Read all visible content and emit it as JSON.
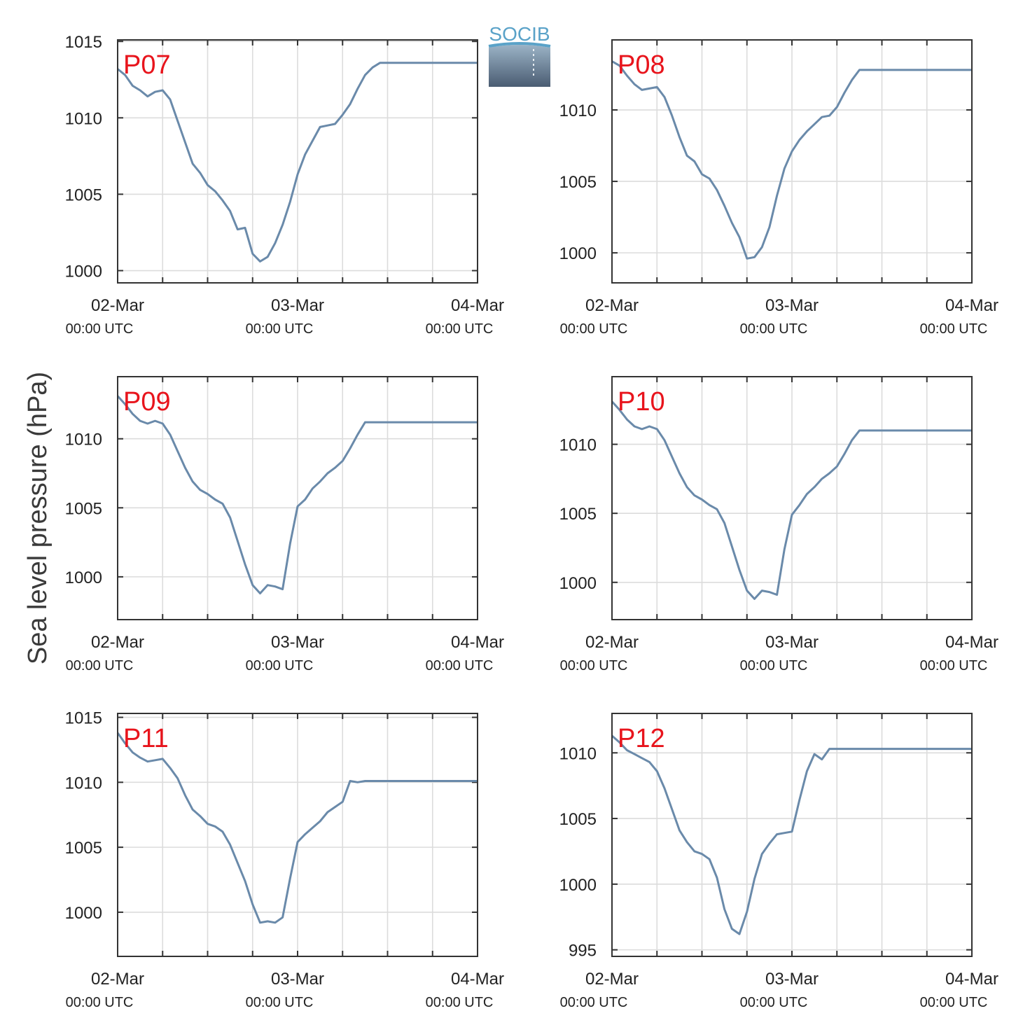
{
  "figure": {
    "ylabel": "Sea level pressure (hPa)",
    "logo_text": "SOCIB",
    "colors": {
      "line": "#6a8aaa",
      "panel_label": "#e8141c",
      "grid": "#dcdcdc",
      "frame": "#333333"
    }
  },
  "chart_data": [
    {
      "type": "line",
      "panel": "P07",
      "ylim": [
        999.2,
        1015.1
      ],
      "yticks": [
        1000,
        1005,
        1010,
        1015
      ],
      "xlim": [
        0,
        48
      ],
      "xticks": [
        {
          "t": 0,
          "date": "02-Mar",
          "time": "00:00 UTC"
        },
        {
          "t": 24,
          "date": "03-Mar",
          "time": "00:00 UTC"
        },
        {
          "t": 48,
          "date": "04-Mar",
          "time": "00:00 UTC"
        }
      ],
      "x_hours": [
        0,
        1,
        2,
        3,
        4,
        5,
        6,
        7,
        8,
        9,
        10,
        11,
        12,
        13,
        14,
        15,
        16,
        17,
        18,
        19,
        20,
        21,
        22,
        23,
        24,
        25,
        26,
        27,
        28,
        29,
        30,
        31,
        32,
        33,
        34,
        35,
        36,
        37,
        38,
        39,
        40,
        41,
        42,
        43,
        44,
        45,
        46,
        47,
        48
      ],
      "values": [
        1013.2,
        1012.8,
        1012.1,
        1011.8,
        1011.4,
        1011.7,
        1011.8,
        1011.2,
        1009.8,
        1008.4,
        1007.0,
        1006.4,
        1005.6,
        1005.2,
        1004.6,
        1003.9,
        1002.7,
        1002.8,
        1001.1,
        1000.6,
        1000.9,
        1001.8,
        1003.0,
        1004.5,
        1006.3,
        1007.6,
        1008.5,
        1009.4,
        1009.5,
        1009.6,
        1010.2,
        1010.9,
        1011.9,
        1012.8,
        1013.3,
        1013.6,
        1013.6,
        1013.6,
        1013.6,
        1013.6,
        1013.6,
        1013.6,
        1013.6,
        1013.6,
        1013.6,
        1013.6,
        1013.6,
        1013.6,
        1013.6
      ]
    },
    {
      "type": "line",
      "panel": "P08",
      "ylim": [
        997.9,
        1014.9
      ],
      "yticks": [
        1000,
        1005,
        1010
      ],
      "xlim": [
        0,
        48
      ],
      "xticks": [
        {
          "t": 0,
          "date": "02-Mar",
          "time": "00:00 UTC"
        },
        {
          "t": 24,
          "date": "03-Mar",
          "time": "00:00 UTC"
        },
        {
          "t": 48,
          "date": "04-Mar",
          "time": "00:00 UTC"
        }
      ],
      "x_hours": [
        0,
        1,
        2,
        3,
        4,
        5,
        6,
        7,
        8,
        9,
        10,
        11,
        12,
        13,
        14,
        15,
        16,
        17,
        18,
        19,
        20,
        21,
        22,
        23,
        24,
        25,
        26,
        27,
        28,
        29,
        30,
        31,
        32,
        33,
        34,
        35,
        36,
        37,
        38,
        39,
        40,
        41,
        42,
        43,
        44,
        45,
        46,
        47,
        48
      ],
      "values": [
        1013.4,
        1013.1,
        1012.4,
        1011.8,
        1011.4,
        1011.5,
        1011.6,
        1010.9,
        1009.6,
        1008.1,
        1006.8,
        1006.4,
        1005.5,
        1005.2,
        1004.4,
        1003.3,
        1002.1,
        1001.1,
        999.6,
        999.7,
        1000.4,
        1001.8,
        1004.0,
        1005.9,
        1007.1,
        1007.9,
        1008.5,
        1009.0,
        1009.5,
        1009.6,
        1010.2,
        1011.2,
        1012.1,
        1012.8,
        1012.8,
        1012.8,
        1012.8,
        1012.8,
        1012.8,
        1012.8,
        1012.8,
        1012.8,
        1012.8,
        1012.8,
        1012.8,
        1012.8,
        1012.8,
        1012.8,
        1012.8
      ]
    },
    {
      "type": "line",
      "panel": "P09",
      "ylim": [
        996.9,
        1014.5
      ],
      "yticks": [
        1000,
        1005,
        1010
      ],
      "xlim": [
        0,
        48
      ],
      "xticks": [
        {
          "t": 0,
          "date": "02-Mar",
          "time": "00:00 UTC"
        },
        {
          "t": 24,
          "date": "03-Mar",
          "time": "00:00 UTC"
        },
        {
          "t": 48,
          "date": "04-Mar",
          "time": "00:00 UTC"
        }
      ],
      "x_hours": [
        0,
        1,
        2,
        3,
        4,
        5,
        6,
        7,
        8,
        9,
        10,
        11,
        12,
        13,
        14,
        15,
        16,
        17,
        18,
        19,
        20,
        21,
        22,
        23,
        24,
        25,
        26,
        27,
        28,
        29,
        30,
        31,
        32,
        33,
        34,
        35,
        36,
        37,
        38,
        39,
        40,
        41,
        42,
        43,
        44,
        45,
        46,
        47,
        48
      ],
      "values": [
        1013.1,
        1012.5,
        1011.8,
        1011.3,
        1011.1,
        1011.3,
        1011.1,
        1010.3,
        1009.1,
        1007.9,
        1006.9,
        1006.3,
        1006.0,
        1005.6,
        1005.3,
        1004.3,
        1002.6,
        1000.9,
        999.4,
        998.8,
        999.4,
        999.3,
        999.1,
        1002.4,
        1005.1,
        1005.6,
        1006.4,
        1006.9,
        1007.5,
        1007.9,
        1008.4,
        1009.3,
        1010.3,
        1011.2,
        1011.2,
        1011.2,
        1011.2,
        1011.2,
        1011.2,
        1011.2,
        1011.2,
        1011.2,
        1011.2,
        1011.2,
        1011.2,
        1011.2,
        1011.2,
        1011.2,
        1011.2
      ]
    },
    {
      "type": "line",
      "panel": "P10",
      "ylim": [
        997.3,
        1014.9
      ],
      "yticks": [
        1000,
        1005,
        1010
      ],
      "xlim": [
        0,
        48
      ],
      "xticks": [
        {
          "t": 0,
          "date": "02-Mar",
          "time": "00:00 UTC"
        },
        {
          "t": 24,
          "date": "03-Mar",
          "time": "00:00 UTC"
        },
        {
          "t": 48,
          "date": "04-Mar",
          "time": "00:00 UTC"
        }
      ],
      "x_hours": [
        0,
        1,
        2,
        3,
        4,
        5,
        6,
        7,
        8,
        9,
        10,
        11,
        12,
        13,
        14,
        15,
        16,
        17,
        18,
        19,
        20,
        21,
        22,
        23,
        24,
        25,
        26,
        27,
        28,
        29,
        30,
        31,
        32,
        33,
        34,
        35,
        36,
        37,
        38,
        39,
        40,
        41,
        42,
        43,
        44,
        45,
        46,
        47,
        48
      ],
      "values": [
        1013.1,
        1012.5,
        1011.8,
        1011.3,
        1011.1,
        1011.3,
        1011.1,
        1010.3,
        1009.1,
        1007.9,
        1006.9,
        1006.3,
        1006.0,
        1005.6,
        1005.3,
        1004.3,
        1002.6,
        1000.9,
        999.4,
        998.8,
        999.4,
        999.3,
        999.1,
        1002.4,
        1004.9,
        1005.6,
        1006.4,
        1006.9,
        1007.5,
        1007.9,
        1008.4,
        1009.3,
        1010.3,
        1011.0,
        1011.0,
        1011.0,
        1011.0,
        1011.0,
        1011.0,
        1011.0,
        1011.0,
        1011.0,
        1011.0,
        1011.0,
        1011.0,
        1011.0,
        1011.0,
        1011.0,
        1011.0
      ]
    },
    {
      "type": "line",
      "panel": "P11",
      "ylim": [
        996.6,
        1015.3
      ],
      "yticks": [
        1000,
        1005,
        1010,
        1015
      ],
      "xlim": [
        0,
        48
      ],
      "xticks": [
        {
          "t": 0,
          "date": "02-Mar",
          "time": "00:00 UTC"
        },
        {
          "t": 24,
          "date": "03-Mar",
          "time": "00:00 UTC"
        },
        {
          "t": 48,
          "date": "04-Mar",
          "time": "00:00 UTC"
        }
      ],
      "x_hours": [
        0,
        1,
        2,
        3,
        4,
        5,
        6,
        7,
        8,
        9,
        10,
        11,
        12,
        13,
        14,
        15,
        16,
        17,
        18,
        19,
        20,
        21,
        22,
        23,
        24,
        25,
        26,
        27,
        28,
        29,
        30,
        31,
        32,
        33,
        34,
        35,
        36,
        37,
        38,
        39,
        40,
        41,
        42,
        43,
        44,
        45,
        46,
        47,
        48
      ],
      "values": [
        1013.8,
        1013.0,
        1012.3,
        1011.9,
        1011.6,
        1011.7,
        1011.8,
        1011.1,
        1010.3,
        1009.0,
        1007.9,
        1007.4,
        1006.8,
        1006.6,
        1006.2,
        1005.2,
        1003.8,
        1002.4,
        1000.6,
        999.2,
        999.3,
        999.2,
        999.6,
        1002.6,
        1005.4,
        1006.0,
        1006.5,
        1007.0,
        1007.7,
        1008.1,
        1008.5,
        1010.1,
        1010.0,
        1010.1,
        1010.1,
        1010.1,
        1010.1,
        1010.1,
        1010.1,
        1010.1,
        1010.1,
        1010.1,
        1010.1,
        1010.1,
        1010.1,
        1010.1,
        1010.1,
        1010.1,
        1010.1
      ]
    },
    {
      "type": "line",
      "panel": "P12",
      "ylim": [
        994.5,
        1013.0
      ],
      "yticks": [
        995,
        1000,
        1005,
        1010
      ],
      "xlim": [
        0,
        48
      ],
      "xticks": [
        {
          "t": 0,
          "date": "02-Mar",
          "time": "00:00 UTC"
        },
        {
          "t": 24,
          "date": "03-Mar",
          "time": "00:00 UTC"
        },
        {
          "t": 48,
          "date": "04-Mar",
          "time": "00:00 UTC"
        }
      ],
      "x_hours": [
        0,
        1,
        2,
        3,
        4,
        5,
        6,
        7,
        8,
        9,
        10,
        11,
        12,
        13,
        14,
        15,
        16,
        17,
        18,
        19,
        20,
        21,
        22,
        23,
        24,
        25,
        26,
        27,
        28,
        29,
        30,
        31,
        32,
        33,
        34,
        35,
        36,
        37,
        38,
        39,
        40,
        41,
        42,
        43,
        44,
        45,
        46,
        47,
        48
      ],
      "values": [
        1011.3,
        1010.8,
        1010.2,
        1009.9,
        1009.6,
        1009.3,
        1008.6,
        1007.3,
        1005.7,
        1004.1,
        1003.2,
        1002.5,
        1002.3,
        1001.9,
        1000.5,
        998.1,
        996.6,
        996.2,
        997.9,
        1000.4,
        1002.3,
        1003.1,
        1003.8,
        1003.9,
        1004.0,
        1006.4,
        1008.6,
        1009.9,
        1009.5,
        1010.3,
        1010.3,
        1010.3,
        1010.3,
        1010.3,
        1010.3,
        1010.3,
        1010.3,
        1010.3,
        1010.3,
        1010.3,
        1010.3,
        1010.3,
        1010.3,
        1010.3,
        1010.3,
        1010.3,
        1010.3,
        1010.3,
        1010.3
      ]
    }
  ]
}
